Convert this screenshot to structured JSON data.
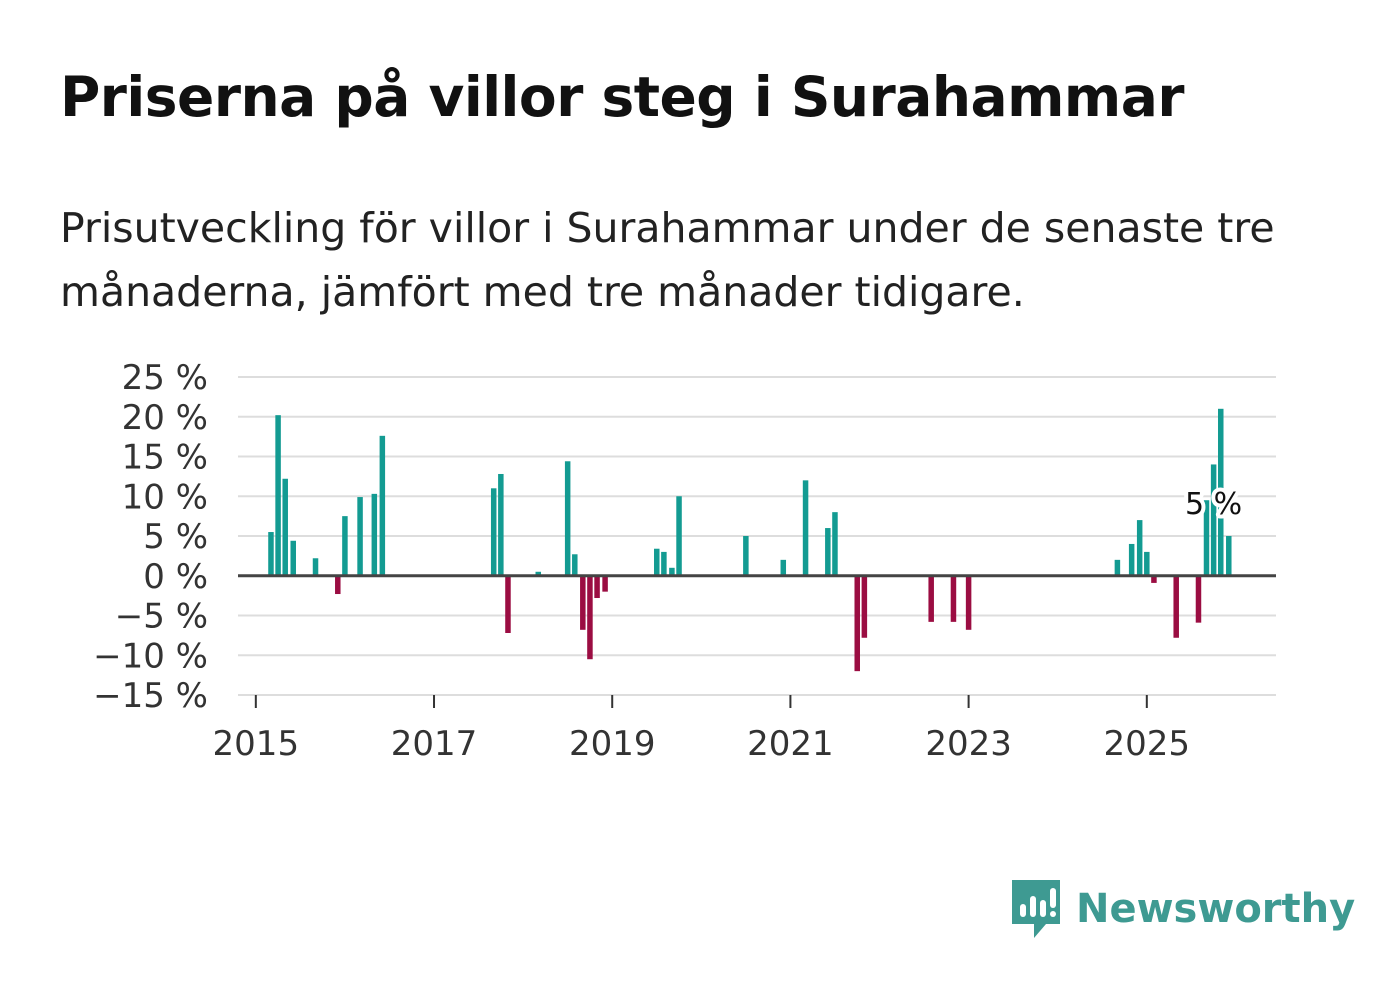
{
  "header": {
    "title": "Priserna på villor steg i Surahammar",
    "subtitle": "Prisutveckling för villor i Surahammar under de senaste tre månaderna, jämfört med tre månader tidigare."
  },
  "brand": {
    "name": "Newsworthy",
    "color": "#3e9a92"
  },
  "colors": {
    "positive": "#139b92",
    "negative": "#9b0d42",
    "grid": "#dddddd",
    "zero_line": "#444444"
  },
  "chart_data": {
    "type": "bar",
    "title": "Priserna på villor steg i Surahammar",
    "xlabel": "",
    "ylabel": "",
    "x_unit": "year",
    "xlim": [
      2014.8,
      2026.45
    ],
    "ylim": [
      -15,
      25
    ],
    "y_ticks": [
      25,
      20,
      15,
      10,
      5,
      0,
      -5,
      -10,
      -15
    ],
    "y_tick_labels": [
      "25 %",
      "20 %",
      "15 %",
      "10 %",
      "5 %",
      "0 %",
      "−5 %",
      "−10 %",
      "−15 %"
    ],
    "x_ticks": [
      2015,
      2017,
      2019,
      2021,
      2023,
      2025
    ],
    "x_tick_labels": [
      "2015",
      "2017",
      "2019",
      "2021",
      "2023",
      "2025"
    ],
    "annotation": {
      "text": "5 %",
      "x": 2025.75,
      "y": 9
    },
    "series": [
      {
        "name": "Prisutveckling",
        "x": [
          2015.17,
          2015.25,
          2015.33,
          2015.42,
          2015.67,
          2015.92,
          2016.0,
          2016.17,
          2016.33,
          2016.42,
          2017.67,
          2017.75,
          2017.83,
          2018.17,
          2018.5,
          2018.58,
          2018.67,
          2018.75,
          2018.83,
          2018.92,
          2019.5,
          2019.58,
          2019.67,
          2019.75,
          2020.5,
          2020.92,
          2021.17,
          2021.42,
          2021.5,
          2021.75,
          2021.83,
          2022.58,
          2022.83,
          2023.0,
          2024.67,
          2024.83,
          2024.92,
          2025.0,
          2025.08,
          2025.33,
          2025.58,
          2025.67,
          2025.75,
          2025.83,
          2025.92
        ],
        "values": [
          5.5,
          20.2,
          12.2,
          4.4,
          2.2,
          -2.3,
          7.5,
          9.9,
          10.3,
          17.6,
          11.0,
          12.8,
          -7.2,
          0.5,
          14.4,
          2.7,
          -6.8,
          -10.5,
          -2.8,
          -2.0,
          3.4,
          3.0,
          1.0,
          10.0,
          5.0,
          2.0,
          12.0,
          6.0,
          8.0,
          -12.0,
          -7.8,
          -5.8,
          -5.8,
          -6.8,
          2.0,
          4.0,
          7.0,
          3.0,
          -0.9,
          -7.8,
          -5.9,
          9.5,
          14.0,
          21.0,
          5.0
        ]
      }
    ]
  }
}
